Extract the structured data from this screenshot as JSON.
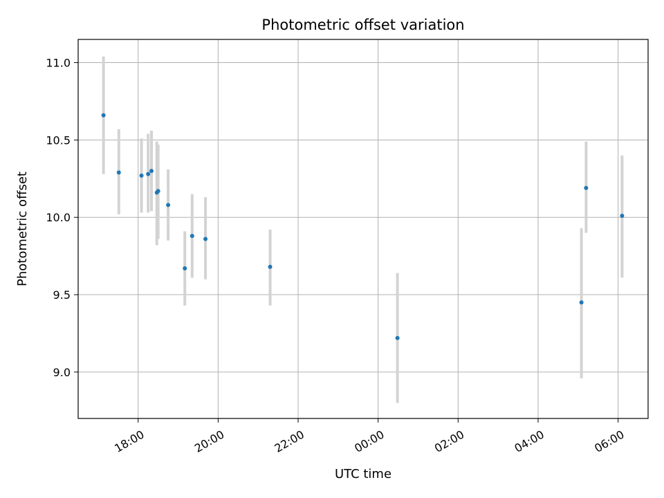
{
  "chart_data": {
    "type": "scatter",
    "title": "Photometric offset variation",
    "xlabel": "UTC time",
    "ylabel": "Photometric offset",
    "x_axis_type": "time",
    "xlim": [
      "16:30",
      "06:45"
    ],
    "ylim": [
      8.7,
      11.15
    ],
    "x_ticks": [
      "18:00",
      "20:00",
      "22:00",
      "00:00",
      "02:00",
      "04:00",
      "06:00"
    ],
    "y_ticks": [
      9.0,
      9.5,
      10.0,
      10.5,
      11.0
    ],
    "y_tick_labels": [
      "9.0",
      "9.5",
      "10.0",
      "10.5",
      "11.0"
    ],
    "grid": true,
    "point_color": "#1f77b4",
    "errorbar_color": "#d3d3d3",
    "points": [
      {
        "x": "17:08",
        "y": 10.66,
        "err_low": 10.28,
        "err_high": 11.04
      },
      {
        "x": "17:31",
        "y": 10.29,
        "err_low": 10.02,
        "err_high": 10.57
      },
      {
        "x": "18:05",
        "y": 10.27,
        "err_low": 10.03,
        "err_high": 10.51
      },
      {
        "x": "18:15",
        "y": 10.28,
        "err_low": 10.03,
        "err_high": 10.54
      },
      {
        "x": "18:20",
        "y": 10.3,
        "err_low": 10.04,
        "err_high": 10.56
      },
      {
        "x": "18:28",
        "y": 10.16,
        "err_low": 9.82,
        "err_high": 10.49
      },
      {
        "x": "18:30",
        "y": 10.17,
        "err_low": 9.86,
        "err_high": 10.47
      },
      {
        "x": "18:45",
        "y": 10.08,
        "err_low": 9.85,
        "err_high": 10.31
      },
      {
        "x": "19:10",
        "y": 9.67,
        "err_low": 9.43,
        "err_high": 9.91
      },
      {
        "x": "19:21",
        "y": 9.88,
        "err_low": 9.61,
        "err_high": 10.15
      },
      {
        "x": "19:41",
        "y": 9.86,
        "err_low": 9.6,
        "err_high": 10.13
      },
      {
        "x": "21:18",
        "y": 9.68,
        "err_low": 9.43,
        "err_high": 9.92
      },
      {
        "x": "00:29",
        "y": 9.22,
        "err_low": 8.8,
        "err_high": 9.64
      },
      {
        "x": "05:05",
        "y": 9.45,
        "err_low": 8.96,
        "err_high": 9.93
      },
      {
        "x": "05:12",
        "y": 10.19,
        "err_low": 9.9,
        "err_high": 10.49
      },
      {
        "x": "06:06",
        "y": 10.01,
        "err_low": 9.61,
        "err_high": 10.4
      }
    ]
  }
}
